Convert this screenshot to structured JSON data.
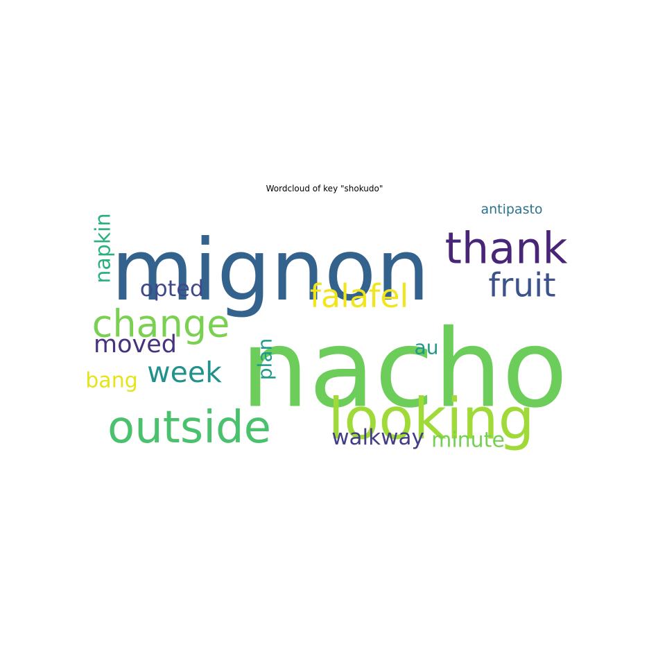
{
  "chart_data": {
    "type": "wordcloud",
    "title": "Wordcloud of key \"shokudo\"",
    "words": [
      {
        "text": "nacho",
        "color": "#6ccd5a"
      },
      {
        "text": "mignon",
        "color": "#33638d"
      },
      {
        "text": "looking",
        "color": "#a0da39"
      },
      {
        "text": "thank",
        "color": "#482576"
      },
      {
        "text": "outside",
        "color": "#4ac16d"
      },
      {
        "text": "fruit",
        "color": "#3b528b"
      },
      {
        "text": "falafel",
        "color": "#f1e51d"
      },
      {
        "text": "change",
        "color": "#7ad151"
      },
      {
        "text": "week",
        "color": "#21918c"
      },
      {
        "text": "moved",
        "color": "#46327e"
      },
      {
        "text": "opted",
        "color": "#3e4989"
      },
      {
        "text": "napkin",
        "color": "#2ab07f"
      },
      {
        "text": "walkway",
        "color": "#433e85"
      },
      {
        "text": "minute",
        "color": "#75d054"
      },
      {
        "text": "plan",
        "color": "#1f9a8a"
      },
      {
        "text": "bang",
        "color": "#e5e419"
      },
      {
        "text": "au",
        "color": "#1f988b"
      },
      {
        "text": "antipasto",
        "color": "#2c728e"
      }
    ]
  }
}
